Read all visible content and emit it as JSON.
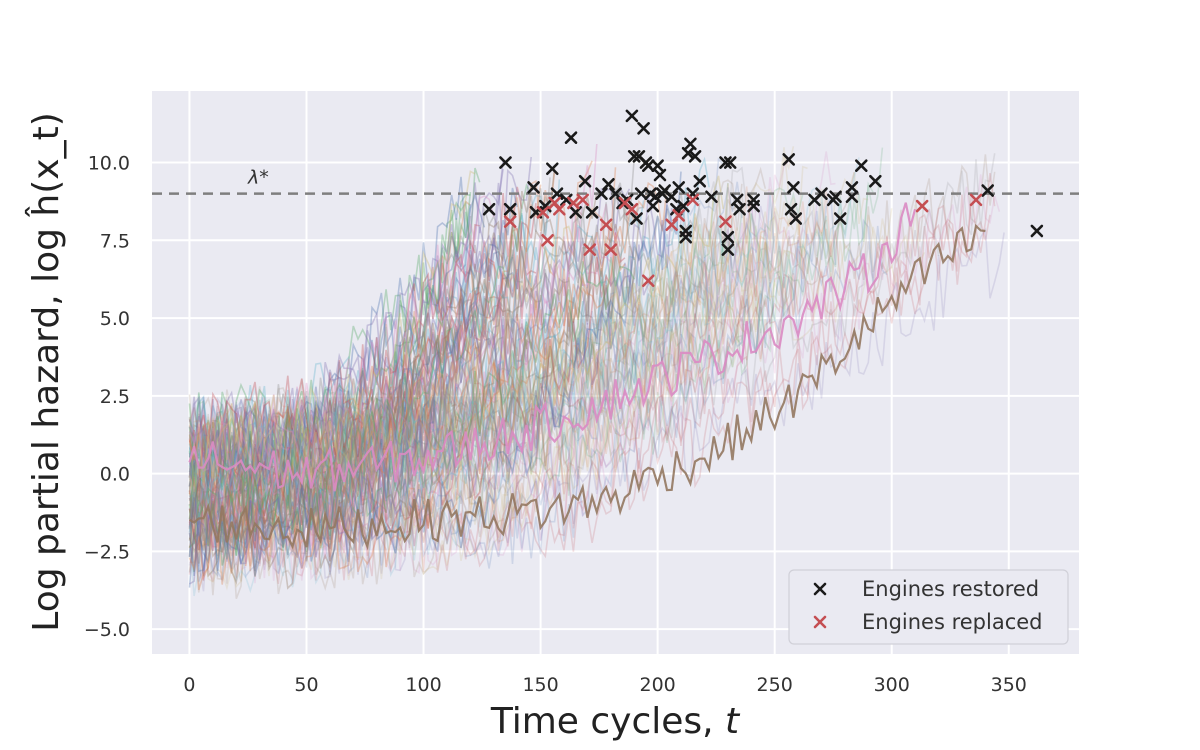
{
  "chart_data": {
    "type": "line",
    "xlabel": "Time cycles, t",
    "ylabel": "Log partial hazard, log ĥ(x_t)",
    "xlim": [
      -16,
      380
    ],
    "ylim": [
      -5.8,
      12.3
    ],
    "xticks": [
      0,
      50,
      100,
      150,
      200,
      250,
      300,
      350
    ],
    "yticks": [
      -5.0,
      -2.5,
      0.0,
      2.5,
      5.0,
      7.5,
      10.0
    ],
    "ytick_labels": [
      "−5.0",
      "−2.5",
      "0.0",
      "2.5",
      "5.0",
      "7.5",
      "10.0"
    ],
    "grid": true,
    "legend_position": "bottom-right",
    "threshold": {
      "label": "λ*",
      "value": 9.0,
      "color": "#7f7f7f"
    },
    "background": "#eaeaf2",
    "series_style": "many semi-transparent noisy engine trajectories rising from about −1 at t=0 to about 8–10 at failure",
    "trajectory_colors": [
      "#4c72b0",
      "#dd8452",
      "#55a868",
      "#c44e52",
      "#8172b3",
      "#937860",
      "#da8bc3",
      "#8c8c8c",
      "#ccb974",
      "#64b5cd"
    ],
    "highlighted_trajectories": [
      {
        "color": "#937860",
        "points": [
          [
            0,
            -1.5
          ],
          [
            50,
            -1.8
          ],
          [
            100,
            -1.5
          ],
          [
            150,
            -1.2
          ],
          [
            180,
            -0.8
          ],
          [
            200,
            0.0
          ],
          [
            220,
            0.5
          ],
          [
            240,
            1.5
          ],
          [
            260,
            2.5
          ],
          [
            280,
            4.0
          ],
          [
            300,
            5.5
          ],
          [
            320,
            6.8
          ],
          [
            340,
            7.8
          ]
        ]
      },
      {
        "color": "#da8bc3",
        "points": [
          [
            0,
            0.5
          ],
          [
            50,
            0.0
          ],
          [
            100,
            0.5
          ],
          [
            150,
            1.5
          ],
          [
            200,
            3.0
          ],
          [
            230,
            4.0
          ],
          [
            260,
            5.0
          ],
          [
            290,
            6.5
          ],
          [
            310,
            8.5
          ]
        ]
      }
    ],
    "series": [
      {
        "name": "Engines restored",
        "marker": "x",
        "color": "#1a1a1a",
        "points": [
          [
            128,
            8.5
          ],
          [
            135,
            10.0
          ],
          [
            137,
            8.5
          ],
          [
            147,
            9.2
          ],
          [
            148,
            8.4
          ],
          [
            152,
            8.6
          ],
          [
            155,
            9.8
          ],
          [
            157,
            9.0
          ],
          [
            161,
            8.8
          ],
          [
            163,
            10.8
          ],
          [
            165,
            8.4
          ],
          [
            169,
            9.4
          ],
          [
            172,
            8.4
          ],
          [
            176,
            9.0
          ],
          [
            179,
            9.3
          ],
          [
            182,
            9.0
          ],
          [
            185,
            8.7
          ],
          [
            187,
            8.8
          ],
          [
            189,
            11.5
          ],
          [
            190,
            10.2
          ],
          [
            191,
            8.2
          ],
          [
            192,
            10.2
          ],
          [
            193,
            9.0
          ],
          [
            194,
            11.1
          ],
          [
            195,
            10.0
          ],
          [
            196,
            9.9
          ],
          [
            197,
            9.0
          ],
          [
            198,
            8.6
          ],
          [
            199,
            8.9
          ],
          [
            200,
            9.9
          ],
          [
            201,
            9.6
          ],
          [
            202,
            9.0
          ],
          [
            203,
            9.1
          ],
          [
            206,
            8.9
          ],
          [
            208,
            8.5
          ],
          [
            209,
            9.2
          ],
          [
            211,
            8.6
          ],
          [
            212,
            7.8
          ],
          [
            212,
            7.6
          ],
          [
            213,
            10.3
          ],
          [
            214,
            10.6
          ],
          [
            215,
            9.0
          ],
          [
            216,
            10.2
          ],
          [
            218,
            9.4
          ],
          [
            223,
            8.9
          ],
          [
            229,
            10.0
          ],
          [
            230,
            7.6
          ],
          [
            230,
            7.2
          ],
          [
            231,
            10.0
          ],
          [
            234,
            8.8
          ],
          [
            235,
            8.5
          ],
          [
            241,
            8.8
          ],
          [
            241,
            8.6
          ],
          [
            256,
            10.1
          ],
          [
            257,
            8.5
          ],
          [
            258,
            9.2
          ],
          [
            259,
            8.2
          ],
          [
            267,
            8.8
          ],
          [
            270,
            9.0
          ],
          [
            275,
            8.8
          ],
          [
            276,
            8.9
          ],
          [
            278,
            8.2
          ],
          [
            283,
            9.2
          ],
          [
            283,
            8.9
          ],
          [
            287,
            9.9
          ],
          [
            293,
            9.4
          ],
          [
            341,
            9.1
          ],
          [
            362,
            7.8
          ]
        ]
      },
      {
        "name": "Engines replaced",
        "marker": "x",
        "color": "#c44e52",
        "points": [
          [
            137,
            8.1
          ],
          [
            151,
            8.4
          ],
          [
            153,
            7.5
          ],
          [
            156,
            8.7
          ],
          [
            158,
            8.5
          ],
          [
            164,
            8.7
          ],
          [
            168,
            8.8
          ],
          [
            171,
            7.2
          ],
          [
            178,
            8.0
          ],
          [
            180,
            7.2
          ],
          [
            186,
            8.7
          ],
          [
            189,
            8.5
          ],
          [
            196,
            6.2
          ],
          [
            206,
            8.0
          ],
          [
            209,
            8.3
          ],
          [
            215,
            8.8
          ],
          [
            229,
            8.1
          ],
          [
            313,
            8.6
          ],
          [
            336,
            8.8
          ]
        ]
      }
    ]
  }
}
